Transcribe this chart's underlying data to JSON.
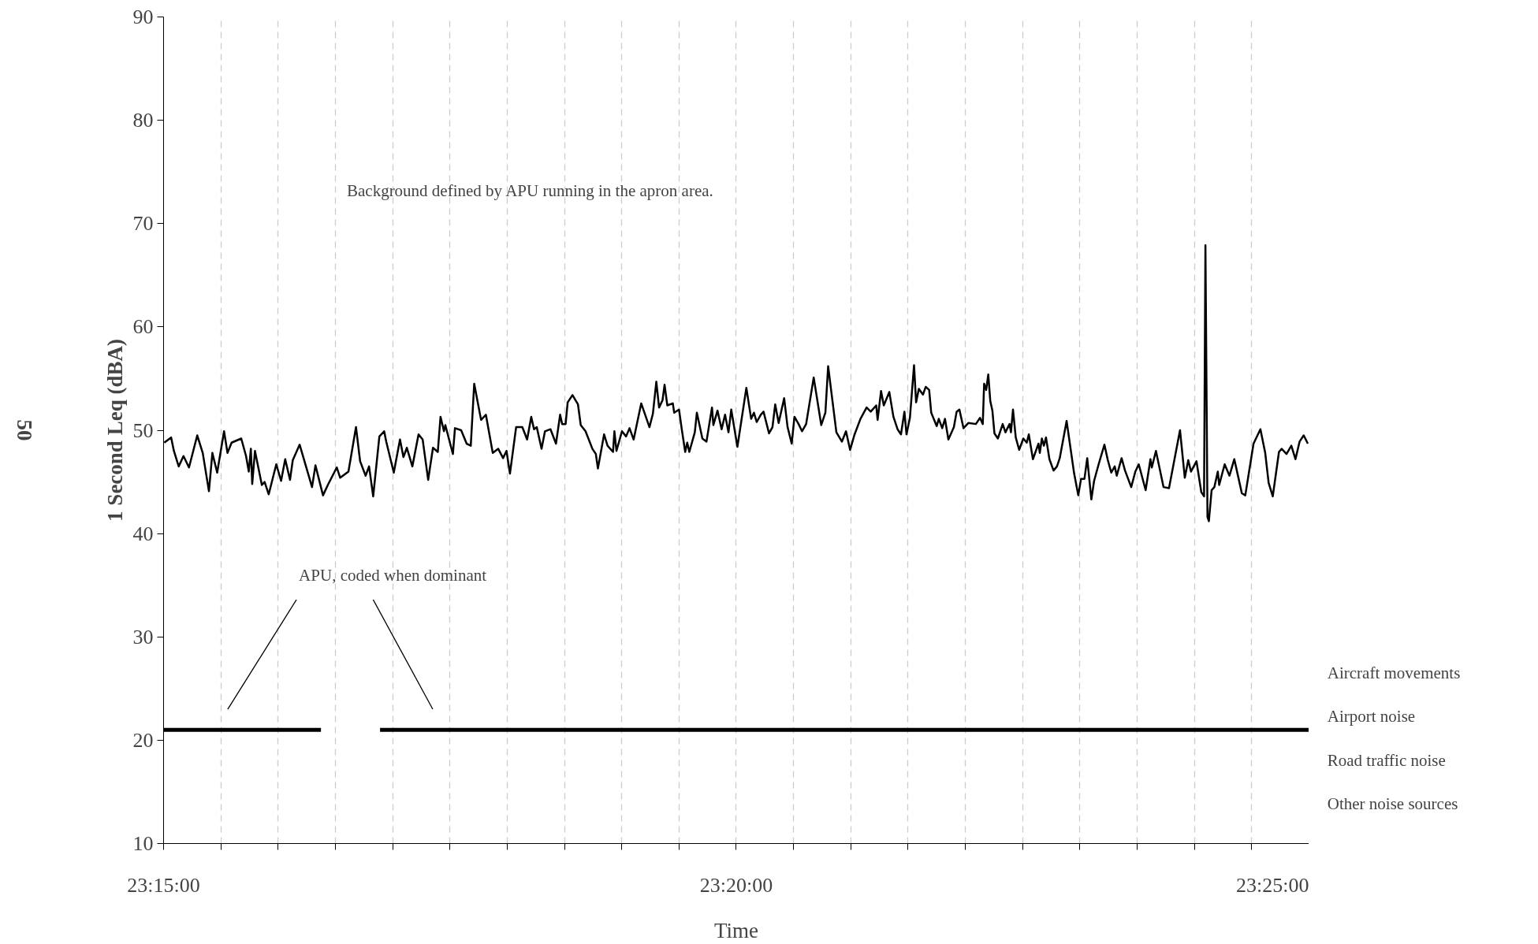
{
  "chart_data": {
    "type": "line",
    "xlabel": "Time",
    "ylabel": "1 Second Leq (dBA)",
    "xlim": [
      23.25,
      23.41667
    ],
    "ylim": [
      10,
      90
    ],
    "xticks": [
      {
        "value": 23.25,
        "label": "23:15:00"
      },
      {
        "value": 23.25833,
        "label": null
      },
      {
        "value": 23.26667,
        "label": null
      },
      {
        "value": 23.275,
        "label": null
      },
      {
        "value": 23.28333,
        "label": null
      },
      {
        "value": 23.29167,
        "label": null
      },
      {
        "value": 23.3,
        "label": null
      },
      {
        "value": 23.30833,
        "label": null
      },
      {
        "value": 23.31667,
        "label": null
      },
      {
        "value": 23.325,
        "label": null
      },
      {
        "value": 23.33333,
        "label": "23:20:00"
      },
      {
        "value": 23.34167,
        "label": null
      },
      {
        "value": 23.35,
        "label": null
      },
      {
        "value": 23.35833,
        "label": null
      },
      {
        "value": 23.36667,
        "label": null
      },
      {
        "value": 23.375,
        "label": null
      },
      {
        "value": 23.38333,
        "label": null
      },
      {
        "value": 23.39167,
        "label": null
      },
      {
        "value": 23.4,
        "label": null
      },
      {
        "value": 23.40833,
        "label": null
      },
      {
        "value": 23.41667,
        "label": "23:25:00"
      }
    ],
    "yticks": [
      10,
      20,
      30,
      40,
      50,
      60,
      70,
      80,
      90
    ],
    "grid": "x",
    "line_style": "solid",
    "series": [
      {
        "color": "#000000",
        "x": [
          23.2501,
          23.2511,
          23.2515,
          23.2522,
          23.2529,
          23.2537,
          23.2549,
          23.2557,
          23.2566,
          23.2571,
          23.2578,
          23.2588,
          23.2593,
          23.2599,
          23.2613,
          23.262,
          23.2624,
          23.2627,
          23.2629,
          23.2633,
          23.2643,
          23.2647,
          23.2653,
          23.2664,
          23.2671,
          23.2677,
          23.2684,
          23.2688,
          23.2698,
          23.2709,
          23.2716,
          23.2721,
          23.2732,
          23.2739,
          23.2752,
          23.2757,
          23.2769,
          23.278,
          23.2786,
          23.2794,
          23.2799,
          23.2805,
          23.2814,
          23.2821,
          23.2824,
          23.2835,
          23.2844,
          23.2849,
          23.2854,
          23.2862,
          23.2871,
          23.2877,
          23.2885,
          23.2892,
          23.2899,
          23.2903,
          23.2908,
          23.291,
          23.2921,
          23.2924,
          23.2933,
          23.2941,
          23.2947,
          23.2952,
          23.2962,
          23.2969,
          23.2979,
          23.2987,
          23.2994,
          23.2999,
          23.3004,
          23.3013,
          23.3022,
          23.3029,
          23.3035,
          23.3039,
          23.3043,
          23.305,
          23.3055,
          23.3063,
          23.3071,
          23.3077,
          23.308,
          23.3085,
          23.3088,
          23.3095,
          23.3103,
          23.3107,
          23.3114,
          23.3124,
          23.3129,
          23.3132,
          23.3141,
          23.3146,
          23.3154,
          23.3156,
          23.3159,
          23.3167,
          23.3173,
          23.3178,
          23.3184,
          23.3195,
          23.3207,
          23.3212,
          23.3217,
          23.3221,
          23.3226,
          23.3229,
          23.3233,
          23.3241,
          23.3243,
          23.325,
          23.3254,
          23.3259,
          23.3262,
          23.3265,
          23.3273,
          23.3276,
          23.3284,
          23.329,
          23.3298,
          23.33,
          23.3306,
          23.3312,
          23.3317,
          23.3322,
          23.3326,
          23.3335,
          23.3348,
          23.3355,
          23.3359,
          23.3363,
          23.3369,
          23.3373,
          23.3381,
          23.3386,
          23.339,
          23.3395,
          23.3403,
          23.3408,
          23.3414,
          23.3418,
          23.3424,
          23.3429,
          23.3435,
          23.3446,
          23.3457,
          23.3463,
          23.3467,
          23.3479,
          23.3487,
          23.3493,
          23.3499,
          23.3505,
          23.3514,
          23.3523,
          23.3529,
          23.3537,
          23.3539,
          23.3544,
          23.3548,
          23.3556,
          23.3562,
          23.3568,
          23.3573,
          23.3578,
          23.3581,
          23.3586,
          23.3592,
          23.3595,
          23.3599,
          23.3605,
          23.3609,
          23.3614,
          23.3617,
          23.3625,
          23.3628,
          23.3633,
          23.3637,
          23.3642,
          23.365,
          23.3654,
          23.3658,
          23.3664,
          23.3671,
          23.3682,
          23.3688,
          23.3692,
          23.3694,
          23.3697,
          23.37,
          23.3703,
          23.3706,
          23.3709,
          23.3714,
          23.3721,
          23.3725,
          23.3731,
          23.3733,
          23.3736,
          23.374,
          23.3745,
          23.3751,
          23.3756,
          23.3759,
          23.3765,
          23.3773,
          23.3775,
          23.3778,
          23.3781,
          23.3784,
          23.3789,
          23.3795,
          23.38,
          23.3804,
          23.3814,
          23.3825,
          23.3831,
          23.3835,
          23.384,
          23.3844,
          23.385,
          23.3854,
          23.3861,
          23.3869,
          23.3874,
          23.3879,
          23.3884,
          23.3887,
          23.3894,
          23.3899,
          23.3908,
          23.3914,
          23.3919,
          23.3929,
          23.3936,
          23.3938,
          23.3944,
          23.3955,
          23.3963,
          23.3971,
          23.3979,
          23.3986,
          23.3991,
          23.3995,
          23.4003,
          23.401,
          23.4014,
          23.4016,
          23.4019,
          23.4021,
          23.4025,
          23.4029,
          23.4034,
          23.4036,
          23.4044,
          23.4051,
          23.4058,
          23.4063,
          23.4069,
          23.4074,
          23.4086,
          23.4096,
          23.4103,
          23.4108,
          23.4114,
          23.4123,
          23.4127,
          23.4134,
          23.4141,
          23.4147,
          23.4153,
          23.4159,
          23.4165
        ],
        "values": [
          48.8,
          49.3,
          48.0,
          46.5,
          47.5,
          46.4,
          49.5,
          47.8,
          44.1,
          47.8,
          45.9,
          49.9,
          47.8,
          48.8,
          49.2,
          47.5,
          46.0,
          48.2,
          44.8,
          48.0,
          44.7,
          45.0,
          43.8,
          46.7,
          45.1,
          47.2,
          45.2,
          47.1,
          48.6,
          46.1,
          44.5,
          46.6,
          43.7,
          44.7,
          46.4,
          45.4,
          46.0,
          50.3,
          47.0,
          45.6,
          46.5,
          43.6,
          49.4,
          49.9,
          48.9,
          45.9,
          49.1,
          47.4,
          48.3,
          46.5,
          49.6,
          49.1,
          45.2,
          48.3,
          47.9,
          51.3,
          49.9,
          50.5,
          47.7,
          50.2,
          50.0,
          48.7,
          48.5,
          54.5,
          51.0,
          51.5,
          47.8,
          48.2,
          47.3,
          48.0,
          45.8,
          50.3,
          50.3,
          49.1,
          51.3,
          50.1,
          50.3,
          48.2,
          49.9,
          50.1,
          48.7,
          51.5,
          50.6,
          50.6,
          52.7,
          53.4,
          52.5,
          50.5,
          49.9,
          48.2,
          47.7,
          46.3,
          49.6,
          48.5,
          47.9,
          49.9,
          48.0,
          49.9,
          49.4,
          50.2,
          49.1,
          52.6,
          50.3,
          51.6,
          54.7,
          52.2,
          52.9,
          54.4,
          52.4,
          52.6,
          51.7,
          52.0,
          50.1,
          47.9,
          48.8,
          47.9,
          49.8,
          51.7,
          49.2,
          48.9,
          52.2,
          50.5,
          51.9,
          50.1,
          51.5,
          49.8,
          52.0,
          48.4,
          54.1,
          51.1,
          51.7,
          50.8,
          51.5,
          51.8,
          49.7,
          50.3,
          52.5,
          50.7,
          53.1,
          50.3,
          48.7,
          51.3,
          50.6,
          49.9,
          50.6,
          55.1,
          50.5,
          51.7,
          56.2,
          49.8,
          48.9,
          49.9,
          48.1,
          49.5,
          51.1,
          52.2,
          51.8,
          52.4,
          51.0,
          53.8,
          52.4,
          53.7,
          51.3,
          50.1,
          49.6,
          51.8,
          49.6,
          51.2,
          56.3,
          52.7,
          54.0,
          53.45,
          54.2,
          53.9,
          51.7,
          50.4,
          51.1,
          50.2,
          51.1,
          49.1,
          50.3,
          51.8,
          52.0,
          50.2,
          50.7,
          50.6,
          51.2,
          50.6,
          54.5,
          53.9,
          55.4,
          52.8,
          51.9,
          49.7,
          49.2,
          50.6,
          49.8,
          50.6,
          49.8,
          52.0,
          49.3,
          48.1,
          49.2,
          48.8,
          49.6,
          47.2,
          48.7,
          47.8,
          49.2,
          48.5,
          49.3,
          47.2,
          46.1,
          46.5,
          47.3,
          50.9,
          45.8,
          43.7,
          45.3,
          45.3,
          47.3,
          43.3,
          45.1,
          46.8,
          48.6,
          47.1,
          45.9,
          46.5,
          45.6,
          47.3,
          46.1,
          44.5,
          46.0,
          46.7,
          44.2,
          47.2,
          46.4,
          48.0,
          44.5,
          44.4,
          47.2,
          50.0,
          45.4,
          47.1,
          46.0,
          47.0,
          44.0,
          43.6,
          67.9,
          41.6,
          41.2,
          44.2,
          44.5,
          46.0,
          44.7,
          46.7,
          45.6,
          47.2,
          45.7,
          43.9,
          43.7,
          48.7,
          50.1,
          47.8,
          44.9,
          43.6,
          47.9,
          48.2,
          47.7,
          48.5,
          47.2,
          48.9,
          49.5,
          48.7
        ]
      },
      {
        "color": "#000000",
        "x": [
          23.25,
          23.2729,
          23.277,
          23.2815,
          23.41667
        ],
        "values": [
          21,
          21,
          null,
          21,
          21
        ]
      }
    ],
    "annotations": [
      "Background defined by APU running in the apron area.",
      "APU, coded when dominant",
      "Aircraft movements",
      "Airport noise",
      "Road traffic noise",
      "Other noise sources",
      "50"
    ]
  }
}
